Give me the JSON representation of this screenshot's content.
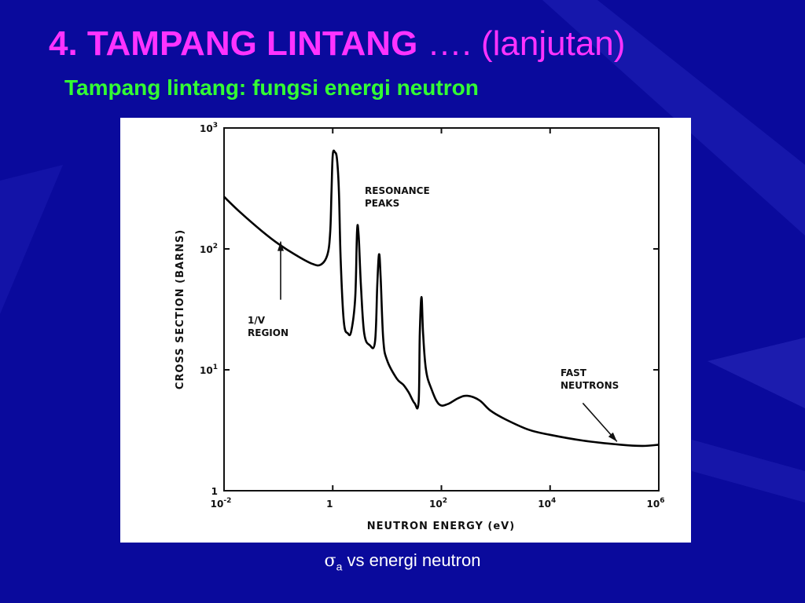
{
  "slide": {
    "title_main": "4. TAMPANG LINTANG",
    "title_rest": " …. (lanjutan)",
    "subtitle": "Tampang lintang: fungsi energi neutron",
    "caption_symbol": "σ",
    "caption_subscript": "a",
    "caption_text": " vs energi neutron"
  },
  "colors": {
    "background": "#0a0a9c",
    "title": "#ff33ff",
    "subtitle": "#33ff33",
    "caption": "#ffffff",
    "plot_background": "#ffffff",
    "curve": "#000000"
  },
  "chart_data": {
    "type": "line",
    "xlabel": "NEUTRON ENERGY (eV)",
    "ylabel": "CROSS SECTION (BARNS)",
    "x_scale": "log",
    "y_scale": "log",
    "xlim": [
      0.01,
      1000000
    ],
    "ylim": [
      1,
      1000
    ],
    "x_ticks": [
      {
        "value": 0.01,
        "base": "10",
        "exp": "-2"
      },
      {
        "value": 1,
        "base": "1",
        "exp": ""
      },
      {
        "value": 100,
        "base": "10",
        "exp": "2"
      },
      {
        "value": 10000,
        "base": "10",
        "exp": "4"
      },
      {
        "value": 1000000,
        "base": "10",
        "exp": "6"
      }
    ],
    "y_ticks": [
      {
        "value": 1,
        "base": "1",
        "exp": ""
      },
      {
        "value": 10,
        "base": "10",
        "exp": "1"
      },
      {
        "value": 100,
        "base": "10",
        "exp": "2"
      },
      {
        "value": 1000,
        "base": "10",
        "exp": "3"
      }
    ],
    "grid": false,
    "legend": "none",
    "series": [
      {
        "points": [
          [
            0.01,
            270
          ],
          [
            0.02,
            200
          ],
          [
            0.05,
            140
          ],
          [
            0.1,
            110
          ],
          [
            0.2,
            90
          ],
          [
            0.4,
            76
          ],
          [
            0.6,
            74
          ],
          [
            0.8,
            90
          ],
          [
            0.9,
            140
          ],
          [
            0.95,
            300
          ],
          [
            1.0,
            600
          ],
          [
            1.1,
            630
          ],
          [
            1.2,
            550
          ],
          [
            1.3,
            300
          ],
          [
            1.4,
            80
          ],
          [
            1.6,
            25
          ],
          [
            1.9,
            20
          ],
          [
            2.2,
            21
          ],
          [
            2.6,
            40
          ],
          [
            2.8,
            140
          ],
          [
            3.0,
            130
          ],
          [
            3.3,
            50
          ],
          [
            3.8,
            20
          ],
          [
            4.8,
            16
          ],
          [
            6.0,
            17
          ],
          [
            6.6,
            50
          ],
          [
            7.1,
            90
          ],
          [
            7.6,
            60
          ],
          [
            8.5,
            18
          ],
          [
            10,
            12
          ],
          [
            15,
            8.5
          ],
          [
            20,
            7.5
          ],
          [
            25,
            6.5
          ],
          [
            32,
            5.3
          ],
          [
            38,
            5.4
          ],
          [
            40,
            20
          ],
          [
            43,
            40
          ],
          [
            46,
            20
          ],
          [
            52,
            10
          ],
          [
            65,
            7
          ],
          [
            90,
            5.2
          ],
          [
            130,
            5.2
          ],
          [
            200,
            5.8
          ],
          [
            300,
            6.1
          ],
          [
            500,
            5.6
          ],
          [
            800,
            4.6
          ],
          [
            1500,
            3.9
          ],
          [
            4000,
            3.2
          ],
          [
            10000,
            2.9
          ],
          [
            40000,
            2.6
          ],
          [
            200000,
            2.4
          ],
          [
            500000,
            2.35
          ],
          [
            1000000,
            2.4
          ]
        ]
      }
    ],
    "annotations": [
      {
        "lines": [
          "RESONANCE",
          "PEAKS"
        ]
      },
      {
        "lines": [
          "1/V",
          "REGION"
        ],
        "arrow_tip": [
          0.11,
          115
        ],
        "arrow_tail": [
          0.11,
          38
        ]
      },
      {
        "lines": [
          "FAST",
          "NEUTRONS"
        ],
        "arrow_tip": [
          170000,
          2.55
        ],
        "arrow_tail": [
          40000,
          5.3
        ]
      }
    ]
  }
}
